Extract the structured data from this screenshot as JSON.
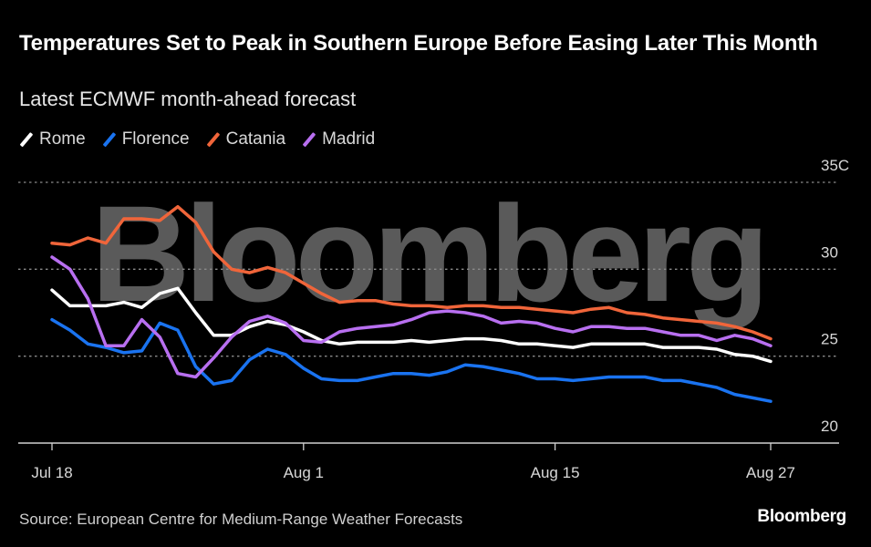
{
  "title": "Temperatures Set to Peak in Southern Europe Before Easing Later This Month",
  "subtitle": "Latest ECMWF month-ahead forecast",
  "source": "Source: European Centre for Medium-Range Weather Forecasts",
  "brand": "Bloomberg",
  "watermark": "Bloomberg",
  "chart_data": {
    "type": "line",
    "title": "Temperatures Set to Peak in Southern Europe Before Easing Later This Month",
    "subtitle": "Latest ECMWF month-ahead forecast",
    "xlabel": "",
    "ylabel": "",
    "x_start": "Jul 18",
    "x_days": 41,
    "x_ticks": [
      {
        "label": "Jul 18",
        "day": 0
      },
      {
        "label": "Aug 1",
        "day": 14
      },
      {
        "label": "Aug 15",
        "day": 28
      },
      {
        "label": "Aug 27",
        "day": 40
      }
    ],
    "y_ticks": [
      {
        "label": "20",
        "value": 20
      },
      {
        "label": "25",
        "value": 25
      },
      {
        "label": "30",
        "value": 30
      },
      {
        "label": "35C",
        "value": 35
      }
    ],
    "ylim": [
      20,
      35
    ],
    "grid": true,
    "y_axis_side": "right",
    "legend_position": "top-left",
    "series": [
      {
        "name": "Rome",
        "color": "#ffffff",
        "values": [
          28.8,
          27.9,
          27.9,
          27.9,
          28.1,
          27.8,
          28.6,
          28.9,
          27.5,
          26.2,
          26.2,
          26.7,
          27.0,
          26.8,
          26.4,
          25.9,
          25.7,
          25.8,
          25.8,
          25.8,
          25.9,
          25.8,
          25.9,
          26.0,
          26.0,
          25.9,
          25.7,
          25.7,
          25.6,
          25.5,
          25.7,
          25.7,
          25.7,
          25.7,
          25.5,
          25.5,
          25.5,
          25.4,
          25.1,
          25.0,
          24.7
        ]
      },
      {
        "name": "Florence",
        "color": "#1a73f0",
        "values": [
          27.1,
          26.5,
          25.7,
          25.5,
          25.2,
          25.3,
          26.9,
          26.5,
          24.4,
          23.4,
          23.6,
          24.8,
          25.4,
          25.1,
          24.3,
          23.7,
          23.6,
          23.6,
          23.8,
          24.0,
          24.0,
          23.9,
          24.1,
          24.5,
          24.4,
          24.2,
          24.0,
          23.7,
          23.7,
          23.6,
          23.7,
          23.8,
          23.8,
          23.8,
          23.6,
          23.6,
          23.4,
          23.2,
          22.8,
          22.6,
          22.4
        ]
      },
      {
        "name": "Catania",
        "color": "#f0653a",
        "values": [
          31.5,
          31.4,
          31.8,
          31.5,
          32.9,
          32.9,
          32.8,
          33.6,
          32.7,
          31.0,
          30.0,
          29.8,
          30.1,
          29.8,
          29.2,
          28.6,
          28.1,
          28.2,
          28.2,
          28.0,
          27.9,
          27.9,
          27.8,
          27.9,
          27.9,
          27.8,
          27.8,
          27.7,
          27.6,
          27.5,
          27.7,
          27.8,
          27.5,
          27.4,
          27.2,
          27.1,
          27.0,
          26.9,
          26.7,
          26.4,
          26.0
        ]
      },
      {
        "name": "Madrid",
        "color": "#b86ff0",
        "values": [
          30.7,
          30.0,
          28.3,
          25.6,
          25.6,
          27.1,
          26.1,
          24.0,
          23.8,
          24.9,
          26.1,
          27.0,
          27.3,
          26.9,
          25.9,
          25.8,
          26.4,
          26.6,
          26.7,
          26.8,
          27.1,
          27.5,
          27.6,
          27.5,
          27.3,
          26.9,
          27.0,
          26.9,
          26.6,
          26.4,
          26.7,
          26.7,
          26.6,
          26.6,
          26.4,
          26.2,
          26.2,
          25.9,
          26.2,
          26.0,
          25.6
        ]
      }
    ]
  }
}
